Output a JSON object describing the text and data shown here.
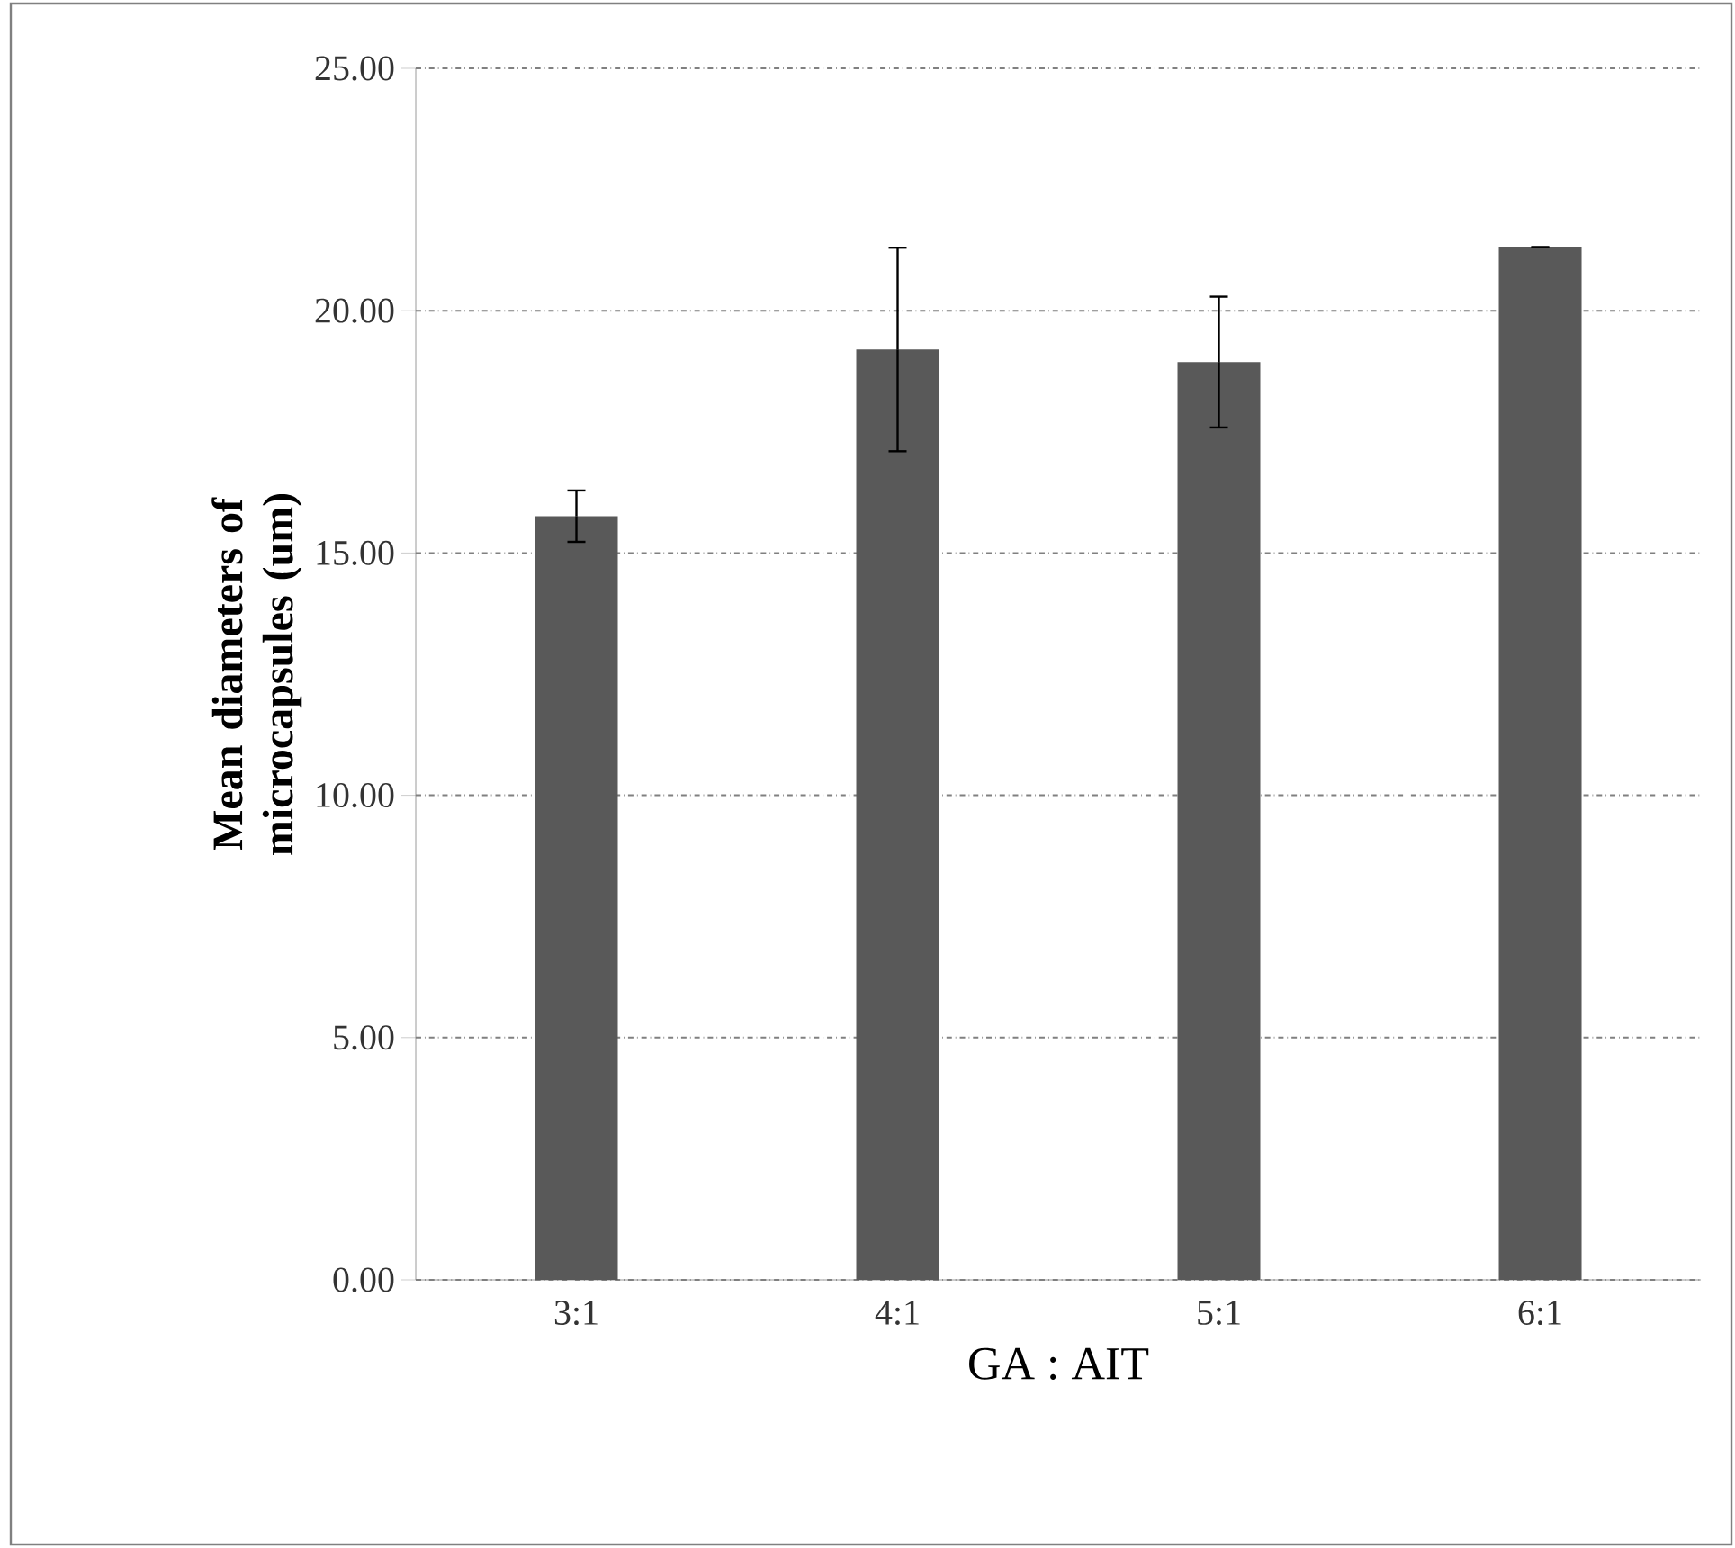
{
  "chart_data": {
    "type": "bar",
    "xlabel": "GA : AIT",
    "ylabel": "Mean diameters of microcapsules (um)",
    "categories": [
      "3:1",
      "4:1",
      "5:1",
      "6:1"
    ],
    "values": [
      15.76,
      19.2,
      18.94,
      21.31
    ],
    "errors": [
      0.53,
      2.1,
      1.35,
      0
    ],
    "color": "#595959",
    "ylim": [
      0,
      25
    ],
    "yticks": [
      {
        "value": 0,
        "label": "0.00"
      },
      {
        "value": 5,
        "label": "5.00"
      },
      {
        "value": 10,
        "label": "10.00"
      },
      {
        "value": 15,
        "label": "15.00"
      },
      {
        "value": 20,
        "label": "20.00"
      },
      {
        "value": 25,
        "label": "25.00"
      }
    ],
    "grid": "y"
  }
}
